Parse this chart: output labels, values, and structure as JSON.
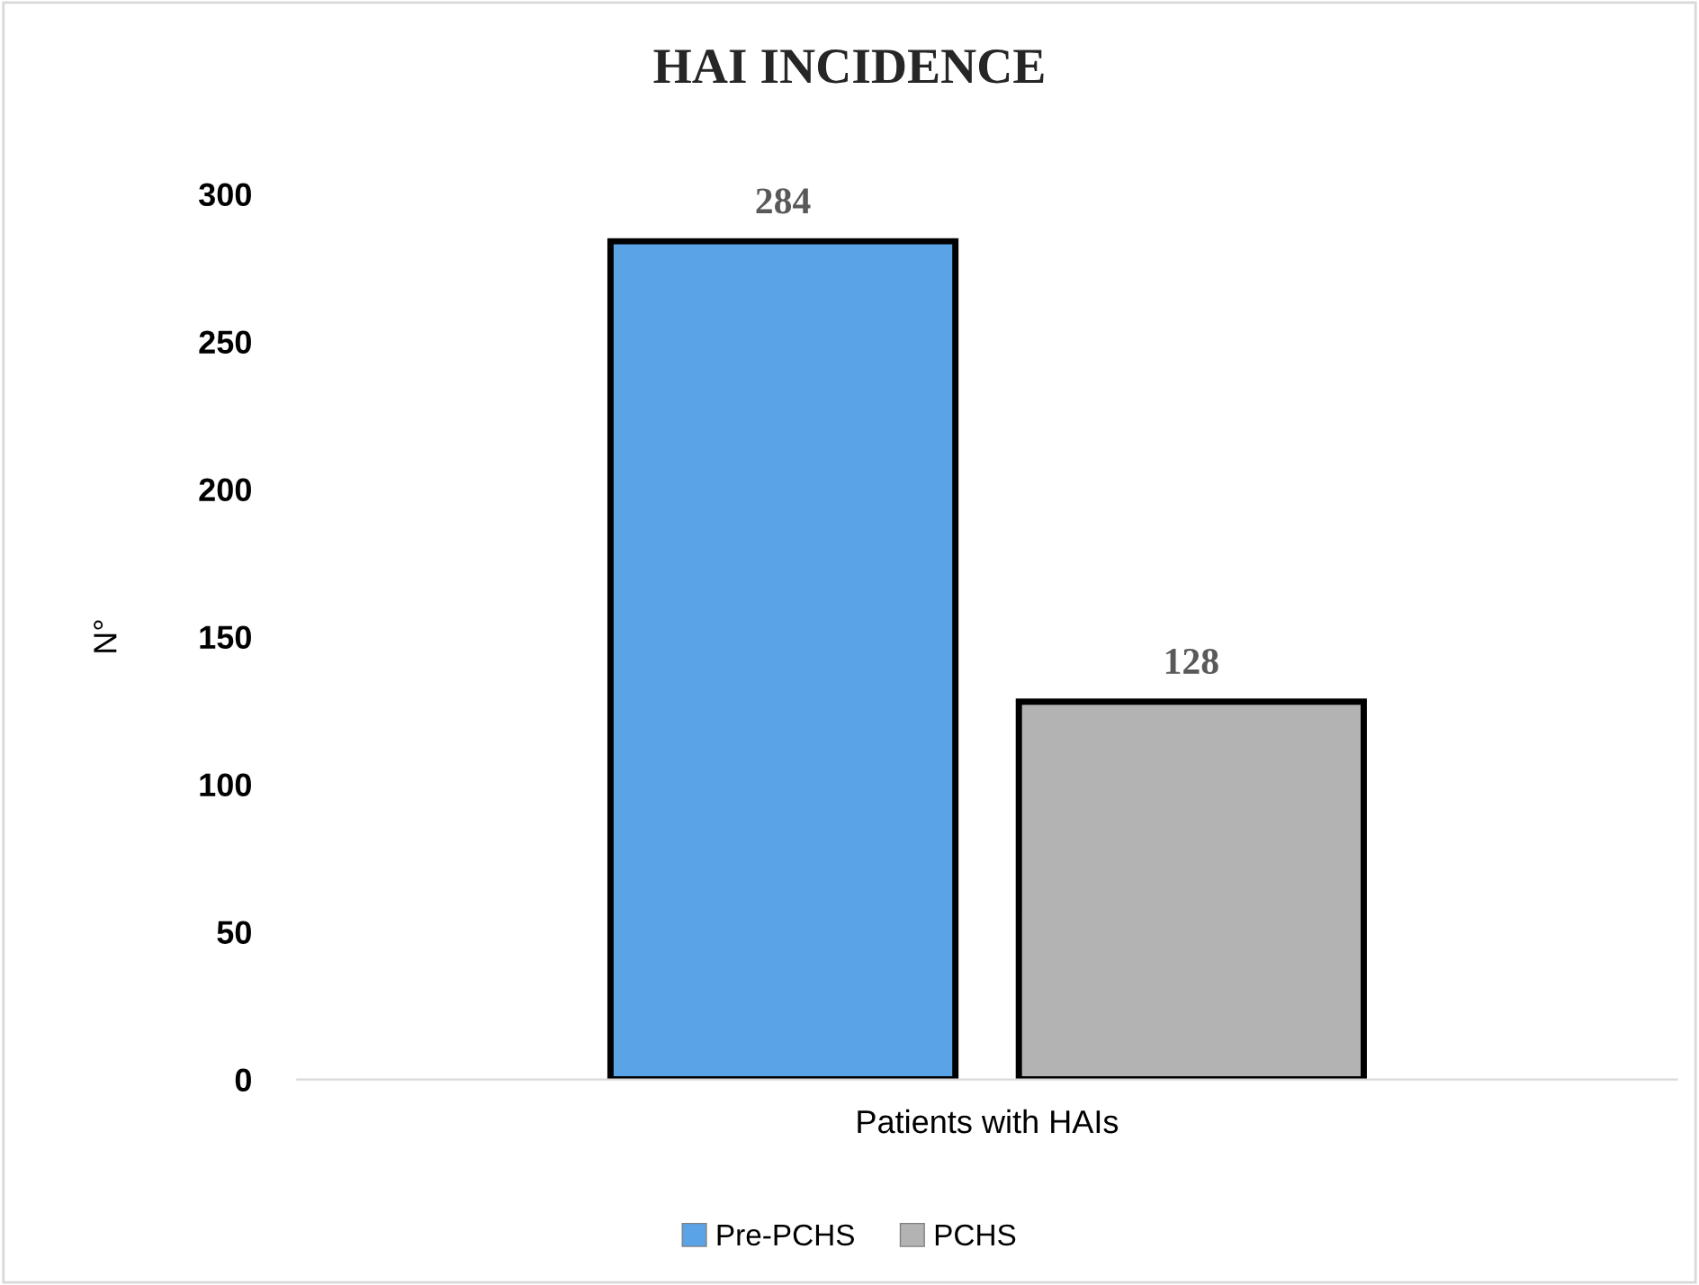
{
  "chart_data": {
    "type": "bar",
    "title": "HAI INCIDENCE",
    "ylabel": "N°",
    "categories": [
      "Patients with HAIs"
    ],
    "series": [
      {
        "name": "Pre-PCHS",
        "color": "#5aa3e6",
        "values": [
          284
        ]
      },
      {
        "name": "PCHS",
        "color": "#b3b3b3",
        "values": [
          128
        ]
      }
    ],
    "ylim": [
      0,
      300
    ],
    "yticks": [
      0,
      50,
      100,
      150,
      200,
      250,
      300
    ],
    "grid": false,
    "legend": "bottom",
    "data_labels": true
  }
}
